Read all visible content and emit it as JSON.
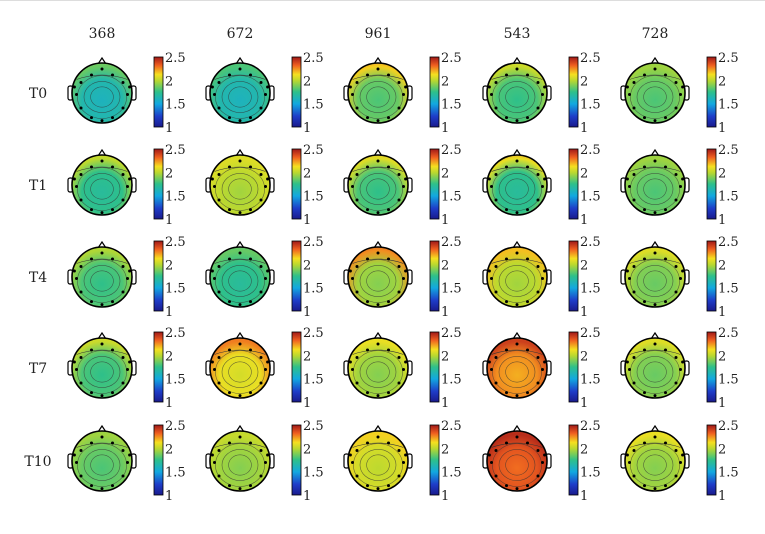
{
  "chart_data": {
    "type": "heatmap",
    "subtype": "eeg-topographic-map-grid",
    "columns": [
      "368",
      "672",
      "961",
      "543",
      "728"
    ],
    "rows": [
      "T0",
      "T1",
      "T4",
      "T7",
      "T10"
    ],
    "colorbar": {
      "min": 1,
      "max": 2.5,
      "ticks": [
        "2.5",
        "2",
        "1.5",
        "1"
      ],
      "colormap": "jet"
    },
    "maps": [
      [
        {
          "frontal": 1.9,
          "posterior": 1.6
        },
        {
          "frontal": 1.8,
          "posterior": 1.6
        },
        {
          "frontal": 2.3,
          "posterior": 1.8
        },
        {
          "frontal": 2.1,
          "posterior": 1.75
        },
        {
          "frontal": 1.9,
          "posterior": 1.8
        }
      ],
      [
        {
          "frontal": 2.1,
          "posterior": 1.7
        },
        {
          "frontal": 2.0,
          "posterior": 1.95
        },
        {
          "frontal": 2.2,
          "posterior": 1.75
        },
        {
          "frontal": 2.3,
          "posterior": 1.7
        },
        {
          "frontal": 1.9,
          "posterior": 1.8
        }
      ],
      [
        {
          "frontal": 2.0,
          "posterior": 1.75
        },
        {
          "frontal": 1.8,
          "posterior": 1.7
        },
        {
          "frontal": 2.4,
          "posterior": 1.9
        },
        {
          "frontal": 2.2,
          "posterior": 1.95
        },
        {
          "frontal": 2.1,
          "posterior": 1.85
        }
      ],
      [
        {
          "frontal": 2.1,
          "posterior": 1.75
        },
        {
          "frontal": 2.3,
          "posterior": 2.05
        },
        {
          "frontal": 2.1,
          "posterior": 1.9
        },
        {
          "frontal": 2.4,
          "posterior": 2.2
        },
        {
          "frontal": 2.1,
          "posterior": 1.85
        }
      ],
      [
        {
          "frontal": 1.9,
          "posterior": 1.8
        },
        {
          "frontal": 1.95,
          "posterior": 1.9
        },
        {
          "frontal": 2.1,
          "posterior": 2.0
        },
        {
          "frontal": 2.4,
          "posterior": 2.3
        },
        {
          "frontal": 2.1,
          "posterior": 1.9
        }
      ]
    ]
  }
}
